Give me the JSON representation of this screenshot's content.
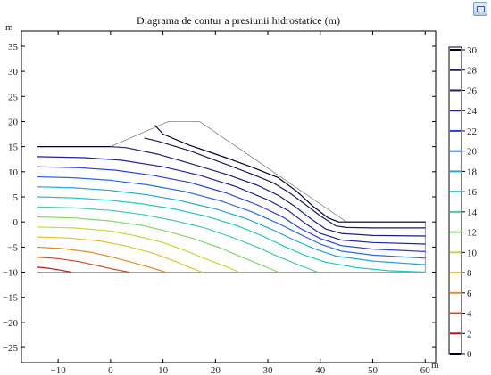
{
  "chart_data": {
    "type": "contour",
    "title": "Diagrama de contur a presiunii hidrostatice (m)",
    "xlabel": "m",
    "ylabel": "m",
    "xlim": [
      -17,
      62
    ],
    "ylim": [
      -28,
      38
    ],
    "xticks": [
      -10,
      0,
      10,
      20,
      30,
      40,
      50,
      60
    ],
    "xtick_labels": [
      "−10",
      "0",
      "10",
      "20",
      "30",
      "40",
      "50",
      "60"
    ],
    "yticks": [
      -25,
      -20,
      -15,
      -10,
      -5,
      0,
      5,
      10,
      15,
      20,
      25,
      30,
      35
    ],
    "ytick_labels": [
      "−25",
      "−20",
      "−15",
      "−10",
      "−5",
      "0",
      "5",
      "10",
      "15",
      "20",
      "25",
      "30",
      "35"
    ],
    "grid": false,
    "legend": "colorbar-right",
    "colorbar": {
      "min": 0,
      "max": 30,
      "ticks": [
        0,
        2,
        4,
        6,
        8,
        10,
        12,
        14,
        16,
        18,
        20,
        22,
        24,
        26,
        28,
        30
      ]
    },
    "domain_outline": [
      [
        -14,
        -10
      ],
      [
        -14,
        15
      ],
      [
        0,
        15
      ],
      [
        11,
        20
      ],
      [
        17,
        20
      ],
      [
        45,
        0
      ],
      [
        60,
        0
      ],
      [
        60,
        -10
      ]
    ],
    "contours": [
      {
        "level": 30,
        "color": "#000030",
        "points": [
          [
            8.5,
            19.2
          ],
          [
            10,
            17.5
          ],
          [
            15,
            15.3
          ],
          [
            22,
            12.8
          ],
          [
            27,
            10.9
          ],
          [
            32,
            8.8
          ],
          [
            35.5,
            6.1
          ],
          [
            38.5,
            3.2
          ],
          [
            41.5,
            0.8
          ],
          [
            43.5,
            0
          ],
          [
            45.5,
            0
          ],
          [
            60,
            0
          ]
        ]
      },
      {
        "level": 28,
        "color": "#1a1a5c",
        "points": [
          [
            6.5,
            16.7
          ],
          [
            9,
            16.1
          ],
          [
            15,
            14.2
          ],
          [
            22,
            11.5
          ],
          [
            27,
            9.5
          ],
          [
            31,
            7.8
          ],
          [
            34,
            5.9
          ],
          [
            37,
            3.6
          ],
          [
            40,
            1.2
          ],
          [
            43,
            -0.8
          ],
          [
            45,
            -1.1
          ],
          [
            50,
            -1.2
          ],
          [
            60,
            -1.2
          ]
        ]
      },
      {
        "level": 26,
        "color": "#1e1e7a",
        "points": [
          [
            0,
            15
          ],
          [
            3,
            14.8
          ],
          [
            9,
            13.5
          ],
          [
            15,
            11.7
          ],
          [
            22,
            9.5
          ],
          [
            28,
            7.3
          ],
          [
            32,
            5.3
          ],
          [
            35,
            3.2
          ],
          [
            38,
            0.8
          ],
          [
            41,
            -1.4
          ],
          [
            44,
            -2.3
          ],
          [
            50,
            -2.7
          ],
          [
            60,
            -2.8
          ]
        ]
      },
      {
        "level": 24,
        "color": "#2020a0",
        "points": [
          [
            -14,
            13
          ],
          [
            -5,
            12.8
          ],
          [
            2,
            12.3
          ],
          [
            10,
            11.0
          ],
          [
            17,
            9.3
          ],
          [
            24,
            7.0
          ],
          [
            30,
            4.4
          ],
          [
            34,
            2.2
          ],
          [
            37,
            -0.2
          ],
          [
            40,
            -2.3
          ],
          [
            44,
            -3.6
          ],
          [
            50,
            -4.1
          ],
          [
            60,
            -4.4
          ]
        ]
      },
      {
        "level": 22,
        "color": "#2a3fd6",
        "points": [
          [
            -14,
            11
          ],
          [
            -6,
            10.8
          ],
          [
            1,
            10.3
          ],
          [
            8,
            9.3
          ],
          [
            15,
            7.9
          ],
          [
            22,
            5.8
          ],
          [
            28,
            3.4
          ],
          [
            33,
            0.9
          ],
          [
            36,
            -1.2
          ],
          [
            40,
            -3.3
          ],
          [
            44,
            -4.7
          ],
          [
            50,
            -5.4
          ],
          [
            60,
            -5.9
          ]
        ]
      },
      {
        "level": 20,
        "color": "#2a6ce0",
        "points": [
          [
            -14,
            9
          ],
          [
            -7,
            8.8
          ],
          [
            0,
            8.3
          ],
          [
            7,
            7.4
          ],
          [
            14,
            6.1
          ],
          [
            21,
            4.2
          ],
          [
            27,
            2.0
          ],
          [
            32,
            -0.3
          ],
          [
            36,
            -2.4
          ],
          [
            40,
            -4.4
          ],
          [
            44,
            -5.8
          ],
          [
            50,
            -6.6
          ],
          [
            60,
            -7.2
          ]
        ]
      },
      {
        "level": 18,
        "color": "#25a6dc",
        "points": [
          [
            -14,
            7
          ],
          [
            -7,
            6.8
          ],
          [
            0,
            6.3
          ],
          [
            7,
            5.4
          ],
          [
            13,
            4.3
          ],
          [
            20,
            2.6
          ],
          [
            26,
            0.6
          ],
          [
            31,
            -1.6
          ],
          [
            35,
            -3.6
          ],
          [
            39,
            -5.4
          ],
          [
            43,
            -6.8
          ],
          [
            50,
            -7.8
          ],
          [
            60,
            -8.5
          ]
        ]
      },
      {
        "level": 16,
        "color": "#1fc8c8",
        "points": [
          [
            -14,
            5
          ],
          [
            -7,
            4.8
          ],
          [
            0,
            4.3
          ],
          [
            6,
            3.6
          ],
          [
            12,
            2.6
          ],
          [
            18,
            1.2
          ],
          [
            24,
            -0.7
          ],
          [
            29,
            -2.8
          ],
          [
            33,
            -4.8
          ],
          [
            37,
            -6.6
          ],
          [
            41,
            -8.0
          ],
          [
            47,
            -9.1
          ],
          [
            53,
            -9.7
          ],
          [
            60,
            -10
          ]
        ]
      },
      {
        "level": 14,
        "color": "#3fd0a8",
        "points": [
          [
            -14,
            3
          ],
          [
            -7,
            2.8
          ],
          [
            0,
            2.3
          ],
          [
            6,
            1.5
          ],
          [
            12,
            0.3
          ],
          [
            18,
            -1.2
          ],
          [
            23,
            -3.0
          ],
          [
            28,
            -5.0
          ],
          [
            32,
            -6.9
          ],
          [
            36,
            -8.6
          ],
          [
            39.5,
            -10
          ]
        ]
      },
      {
        "level": 12,
        "color": "#80d86a",
        "points": [
          [
            -14,
            1
          ],
          [
            -7,
            0.8
          ],
          [
            0,
            0.2
          ],
          [
            6,
            -0.7
          ],
          [
            11,
            -1.9
          ],
          [
            16,
            -3.4
          ],
          [
            21,
            -5.2
          ],
          [
            25,
            -7.0
          ],
          [
            29,
            -8.7
          ],
          [
            32,
            -10
          ]
        ]
      },
      {
        "level": 10,
        "color": "#c6d83a",
        "points": [
          [
            -14,
            -1
          ],
          [
            -7,
            -1.2
          ],
          [
            0,
            -1.8
          ],
          [
            5,
            -2.8
          ],
          [
            10,
            -4.1
          ],
          [
            14,
            -5.6
          ],
          [
            18,
            -7.3
          ],
          [
            22,
            -8.9
          ],
          [
            24.5,
            -10
          ]
        ]
      },
      {
        "level": 8,
        "color": "#e8c02a",
        "points": [
          [
            -14,
            -3
          ],
          [
            -8,
            -3.2
          ],
          [
            -2,
            -3.8
          ],
          [
            3,
            -4.8
          ],
          [
            8,
            -6.2
          ],
          [
            12,
            -7.7
          ],
          [
            15,
            -9.0
          ],
          [
            17.5,
            -10
          ]
        ]
      },
      {
        "level": 6,
        "color": "#e88a22",
        "points": [
          [
            -14,
            -5
          ],
          [
            -9,
            -5.3
          ],
          [
            -4,
            -6.0
          ],
          [
            0,
            -6.9
          ],
          [
            4,
            -8.0
          ],
          [
            8,
            -9.2
          ],
          [
            10.5,
            -10
          ]
        ]
      },
      {
        "level": 4,
        "color": "#d24a1c",
        "points": [
          [
            -14,
            -7
          ],
          [
            -10,
            -7.3
          ],
          [
            -6,
            -7.9
          ],
          [
            -2,
            -8.8
          ],
          [
            1,
            -9.5
          ],
          [
            3.5,
            -10
          ]
        ]
      },
      {
        "level": 2,
        "color": "#b8181c",
        "points": [
          [
            -14,
            -9
          ],
          [
            -12,
            -9.2
          ],
          [
            -9.5,
            -9.6
          ],
          [
            -7.5,
            -10
          ]
        ]
      }
    ]
  }
}
